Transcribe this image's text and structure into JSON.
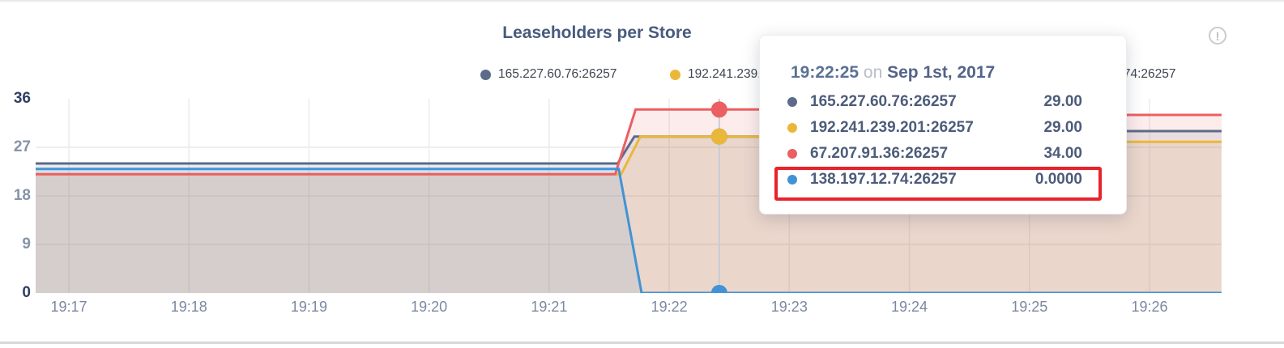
{
  "header": {
    "title": "Leaseholders per Store",
    "info_icon": "!"
  },
  "chart_data": {
    "type": "area",
    "title": "Leaseholders per Store",
    "xlabel": "",
    "ylabel": "",
    "ylim": [
      0,
      36
    ],
    "y_ticks": [
      0,
      9,
      18,
      27,
      36
    ],
    "x_ticks": [
      {
        "label": "19:17",
        "minutes": 17
      },
      {
        "label": "19:18",
        "minutes": 18
      },
      {
        "label": "19:19",
        "minutes": 19
      },
      {
        "label": "19:20",
        "minutes": 20
      },
      {
        "label": "19:21",
        "minutes": 21
      },
      {
        "label": "19:22",
        "minutes": 22
      },
      {
        "label": "19:23",
        "minutes": 23
      },
      {
        "label": "19:24",
        "minutes": 24
      },
      {
        "label": "19:25",
        "minutes": 25
      },
      {
        "label": "19:26",
        "minutes": 26
      }
    ],
    "x_range_minutes": [
      16.72,
      26.6
    ],
    "grid": true,
    "legend_position": "top",
    "series": [
      {
        "name": "165.227.60.76:26257",
        "color": "#5b6b88",
        "hover_value": 29,
        "points": [
          [
            16.72,
            24
          ],
          [
            21.57,
            24
          ],
          [
            21.71,
            29
          ],
          [
            24.35,
            29
          ],
          [
            24.5,
            30
          ],
          [
            26.6,
            30
          ]
        ]
      },
      {
        "name": "192.241.239.201:26257",
        "color": "#eab839",
        "hover_value": 29,
        "points": [
          [
            16.72,
            22
          ],
          [
            21.6,
            22
          ],
          [
            21.76,
            29
          ],
          [
            24.35,
            29
          ],
          [
            24.5,
            28
          ],
          [
            26.6,
            28
          ]
        ]
      },
      {
        "name": "67.207.91.36:26257",
        "color": "#eb5f62",
        "hover_value": 34,
        "points": [
          [
            16.72,
            22
          ],
          [
            21.55,
            22
          ],
          [
            21.72,
            34
          ],
          [
            24.35,
            34
          ],
          [
            24.5,
            33
          ],
          [
            26.6,
            33
          ]
        ]
      },
      {
        "name": "138.197.12.74:26257",
        "color": "#4193d6",
        "hover_value": 0,
        "points": [
          [
            16.72,
            23
          ],
          [
            21.58,
            23
          ],
          [
            21.77,
            0
          ],
          [
            26.6,
            0
          ]
        ]
      }
    ],
    "hover": {
      "time": "19:22:25",
      "x_minutes": 22.4167
    }
  },
  "tooltip": {
    "time": "19:22:25",
    "connector": "on",
    "date": "Sep 1st, 2017",
    "highlight_color": "#e8232b",
    "rows": [
      {
        "label": "165.227.60.76:26257",
        "value": "29.00",
        "color": "#5b6b88",
        "highlighted": false
      },
      {
        "label": "192.241.239.201:26257",
        "value": "29.00",
        "color": "#eab839",
        "highlighted": false
      },
      {
        "label": "67.207.91.36:26257",
        "value": "34.00",
        "color": "#eb5f62",
        "highlighted": false
      },
      {
        "label": "138.197.12.74:26257",
        "value": "0.0000",
        "color": "#4193d6",
        "highlighted": true
      }
    ]
  }
}
